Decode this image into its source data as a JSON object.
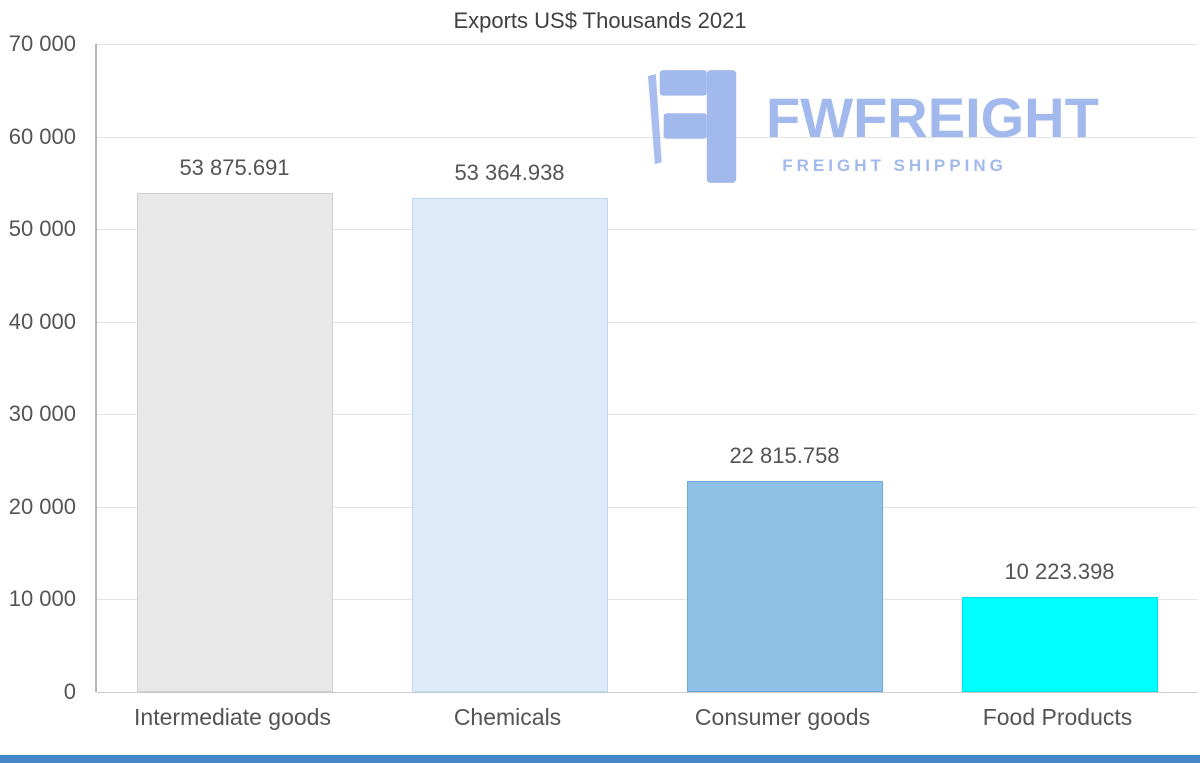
{
  "chart_data": {
    "type": "bar",
    "title": "Exports US$ Thousands 2021",
    "categories": [
      "Intermediate goods",
      "Chemicals",
      "Consumer goods",
      "Food Products"
    ],
    "values": [
      53875.691,
      53364.938,
      22815.758,
      10223.398
    ],
    "value_labels": [
      "53 875.691",
      "53 364.938",
      "22 815.758",
      "10 223.398"
    ],
    "bar_colors": [
      "#e8e8e8",
      "#dceafa",
      "#8fc1e6",
      "#00ffff"
    ],
    "bar_border_colors": [
      "#cfcfcf",
      "#c2d8ef",
      "#6aa9d9",
      "#00dde8"
    ],
    "xlabel": "",
    "ylabel": "",
    "ylim": [
      0,
      70000
    ],
    "ytick_step": 10000,
    "ytick_labels": [
      "0",
      "10 000",
      "20 000",
      "30 000",
      "40 000",
      "50 000",
      "60 000",
      "70 000"
    ],
    "grid": "horizontal",
    "legend": "none"
  },
  "logo": {
    "brand": "FWFREIGHT",
    "tagline": "FREIGHT SHIPPING",
    "color": "#a2b9ee"
  },
  "footer": {
    "color": "#4687c9"
  }
}
